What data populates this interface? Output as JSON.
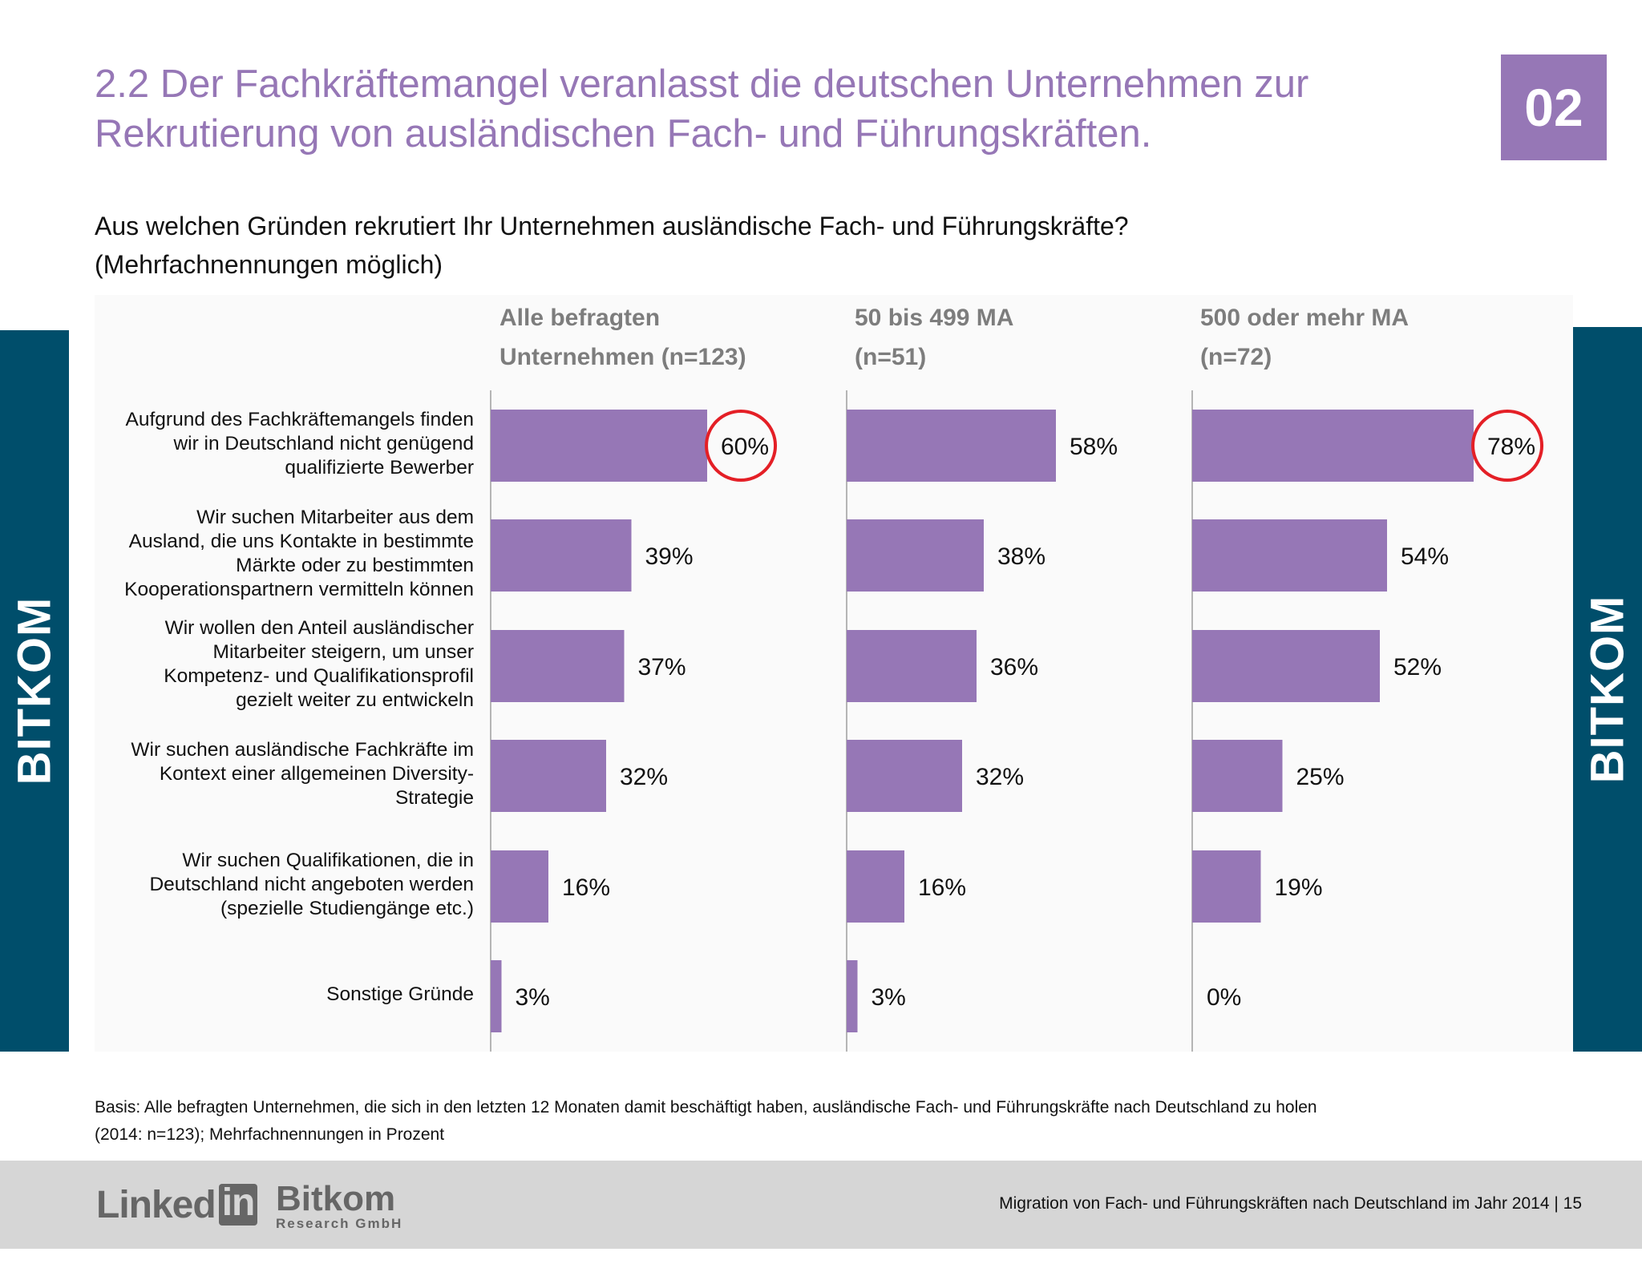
{
  "header": {
    "title_line1": "2.2 Der Fachkräftemangel veranlasst die deutschen Unternehmen zur",
    "title_line2": "Rekrutierung von ausländischen Fach- und Führungskräften.",
    "page_badge": "02"
  },
  "question": {
    "line1": "Aus welchen Gründen rekrutiert Ihr Unternehmen ausländische Fach- und Führungskräfte?",
    "line2": "(Mehrfachnennungen möglich)"
  },
  "side_labels": {
    "left": "BITKOM",
    "right": "BITKOM"
  },
  "chart_data": {
    "type": "bar",
    "orientation": "horizontal",
    "categories": [
      "Aufgrund des Fachkräftemangels finden wir in Deutschland nicht genügend qualifizierte Bewerber",
      "Wir suchen Mitarbeiter aus dem Ausland, die uns Kontakte in bestimmte Märkte oder zu bestimmten Kooperationspartnern vermitteln können",
      "Wir wollen den Anteil ausländischer Mitarbeiter steigern, um unser Kompetenz- und Qualifikationsprofil gezielt weiter zu entwickeln",
      "Wir suchen ausländische Fachkräfte im Kontext einer allgemeinen Diversity-Strategie",
      "Wir suchen Qualifikationen, die in Deutschland nicht angeboten werden (spezielle Studiengänge etc.)",
      "Sonstige Gründe"
    ],
    "category_lines": [
      [
        "Aufgrund des Fachkräftemangels finden",
        "wir in Deutschland nicht genügend",
        "qualifizierte Bewerber"
      ],
      [
        "Wir suchen Mitarbeiter aus dem",
        "Ausland, die uns Kontakte in bestimmte",
        "Märkte oder zu bestimmten",
        "Kooperationspartnern vermitteln können"
      ],
      [
        "Wir wollen den Anteil ausländischer",
        "Mitarbeiter steigern, um unser",
        "Kompetenz- und Qualifikationsprofil",
        "gezielt weiter zu entwickeln"
      ],
      [
        "Wir suchen ausländische Fachkräfte im",
        "Kontext einer allgemeinen Diversity-",
        "Strategie"
      ],
      [
        "Wir suchen Qualifikationen, die in",
        "Deutschland nicht angeboten werden",
        "(spezielle Studiengänge etc.)"
      ],
      [
        "Sonstige Gründe"
      ]
    ],
    "series": [
      {
        "name": "Alle befragten Unternehmen (n=123)",
        "header_lines": [
          "Alle befragten",
          "Unternehmen (n=123)"
        ],
        "values": [
          60,
          39,
          37,
          32,
          16,
          3
        ],
        "highlight_index": 0
      },
      {
        "name": "50 bis 499 MA (n=51)",
        "header_lines": [
          "50 bis 499 MA",
          "(n=51)"
        ],
        "values": [
          58,
          38,
          36,
          32,
          16,
          3
        ],
        "highlight_index": -1
      },
      {
        "name": "500 oder mehr MA (n=72)",
        "header_lines": [
          "500 oder mehr MA",
          "(n=72)"
        ],
        "values": [
          78,
          54,
          52,
          25,
          19,
          0
        ],
        "highlight_index": 0
      }
    ],
    "value_suffix": "%",
    "xlim": [
      0,
      100
    ],
    "bar_color": "#9677b6",
    "highlight_color": "#e41f26"
  },
  "footnote": {
    "line1": "Basis: Alle befragten Unternehmen, die sich in den letzten 12 Monaten damit beschäftigt haben, ausländische Fach- und Führungskräfte nach Deutschland zu holen",
    "line2": "(2014: n=123); Mehrfachnennungen in Prozent"
  },
  "footer": {
    "text": "Migration von Fach- und Führungskräften nach Deutschland im Jahr 2014  |  15",
    "logo_linkedin_text": "Linked",
    "logo_linkedin_box": "in",
    "logo_bitkom_name": "Bitkom",
    "logo_bitkom_sub": "Research GmbH"
  }
}
